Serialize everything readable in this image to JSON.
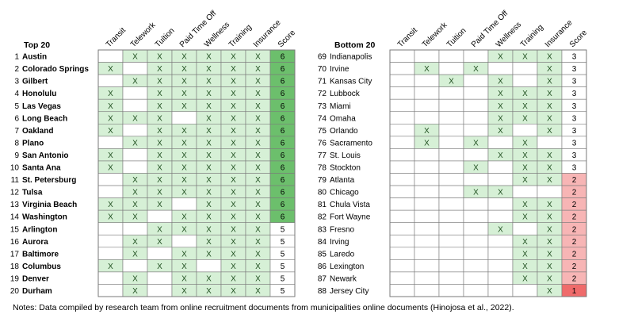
{
  "chart_data": {
    "type": "table",
    "columns": [
      "Transit",
      "Telework",
      "Tuition",
      "Paid Time Off",
      "Wellness",
      "Training",
      "Insurance",
      "Score"
    ],
    "mark": "X",
    "colors": {
      "check_fill": "#d6f0d6",
      "score_6": "#6cbf6c",
      "score_5": "#ffffff",
      "score_3": "#ffffff",
      "score_2": "#f7b5b5",
      "score_1": "#ef6b6b",
      "border": "#7a7a7a"
    },
    "tables": [
      {
        "title": "Top 20",
        "rows": [
          {
            "rank": "1",
            "city": "Austin",
            "flags": [
              0,
              1,
              1,
              1,
              1,
              1,
              1
            ],
            "score": "6"
          },
          {
            "rank": "2",
            "city": "Colorado Springs",
            "flags": [
              1,
              0,
              1,
              1,
              1,
              1,
              1
            ],
            "score": "6"
          },
          {
            "rank": "3",
            "city": "Gilbert",
            "flags": [
              0,
              1,
              1,
              1,
              1,
              1,
              1
            ],
            "score": "6"
          },
          {
            "rank": "4",
            "city": "Honolulu",
            "flags": [
              1,
              0,
              1,
              1,
              1,
              1,
              1
            ],
            "score": "6"
          },
          {
            "rank": "5",
            "city": "Las Vegas",
            "flags": [
              1,
              0,
              1,
              1,
              1,
              1,
              1
            ],
            "score": "6"
          },
          {
            "rank": "6",
            "city": "Long Beach",
            "flags": [
              1,
              1,
              1,
              0,
              1,
              1,
              1
            ],
            "score": "6"
          },
          {
            "rank": "7",
            "city": "Oakland",
            "flags": [
              1,
              0,
              1,
              1,
              1,
              1,
              1
            ],
            "score": "6"
          },
          {
            "rank": "8",
            "city": "Plano",
            "flags": [
              0,
              1,
              1,
              1,
              1,
              1,
              1
            ],
            "score": "6"
          },
          {
            "rank": "9",
            "city": "San Antonio",
            "flags": [
              1,
              0,
              1,
              1,
              1,
              1,
              1
            ],
            "score": "6"
          },
          {
            "rank": "10",
            "city": "Santa Ana",
            "flags": [
              1,
              0,
              1,
              1,
              1,
              1,
              1
            ],
            "score": "6"
          },
          {
            "rank": "11",
            "city": "St. Petersburg",
            "flags": [
              0,
              1,
              1,
              1,
              1,
              1,
              1
            ],
            "score": "6"
          },
          {
            "rank": "12",
            "city": "Tulsa",
            "flags": [
              0,
              1,
              1,
              1,
              1,
              1,
              1
            ],
            "score": "6"
          },
          {
            "rank": "13",
            "city": "Virginia Beach",
            "flags": [
              1,
              1,
              1,
              0,
              1,
              1,
              1
            ],
            "score": "6"
          },
          {
            "rank": "14",
            "city": "Washington",
            "flags": [
              1,
              1,
              0,
              1,
              1,
              1,
              1
            ],
            "score": "6"
          },
          {
            "rank": "15",
            "city": "Arlington",
            "flags": [
              0,
              0,
              1,
              1,
              1,
              1,
              1
            ],
            "score": "5"
          },
          {
            "rank": "16",
            "city": "Aurora",
            "flags": [
              0,
              1,
              1,
              0,
              1,
              1,
              1
            ],
            "score": "5"
          },
          {
            "rank": "17",
            "city": "Baltimore",
            "flags": [
              0,
              1,
              0,
              1,
              1,
              1,
              1
            ],
            "score": "5"
          },
          {
            "rank": "18",
            "city": "Columbus",
            "flags": [
              1,
              0,
              1,
              1,
              0,
              1,
              1
            ],
            "score": "5"
          },
          {
            "rank": "19",
            "city": "Denver",
            "flags": [
              0,
              1,
              0,
              1,
              1,
              1,
              1
            ],
            "score": "5"
          },
          {
            "rank": "20",
            "city": "Durham",
            "flags": [
              0,
              1,
              0,
              1,
              1,
              1,
              1
            ],
            "score": "5"
          }
        ]
      },
      {
        "title": "Bottom 20",
        "rows": [
          {
            "rank": "69",
            "city": "Indianapolis",
            "flags": [
              0,
              0,
              0,
              0,
              1,
              1,
              1
            ],
            "score": "3"
          },
          {
            "rank": "70",
            "city": "Irvine",
            "flags": [
              0,
              1,
              0,
              1,
              0,
              0,
              1
            ],
            "score": "3"
          },
          {
            "rank": "71",
            "city": "Kansas City",
            "flags": [
              0,
              0,
              1,
              0,
              1,
              0,
              1
            ],
            "score": "3"
          },
          {
            "rank": "72",
            "city": "Lubbock",
            "flags": [
              0,
              0,
              0,
              0,
              1,
              1,
              1
            ],
            "score": "3"
          },
          {
            "rank": "73",
            "city": "Miami",
            "flags": [
              0,
              0,
              0,
              0,
              1,
              1,
              1
            ],
            "score": "3"
          },
          {
            "rank": "74",
            "city": "Omaha",
            "flags": [
              0,
              0,
              0,
              0,
              1,
              1,
              1
            ],
            "score": "3"
          },
          {
            "rank": "75",
            "city": "Orlando",
            "flags": [
              0,
              1,
              0,
              0,
              1,
              0,
              1
            ],
            "score": "3"
          },
          {
            "rank": "76",
            "city": "Sacramento",
            "flags": [
              0,
              1,
              0,
              1,
              0,
              1,
              0
            ],
            "score": "3"
          },
          {
            "rank": "77",
            "city": "St. Louis",
            "flags": [
              0,
              0,
              0,
              0,
              1,
              1,
              1
            ],
            "score": "3"
          },
          {
            "rank": "78",
            "city": "Stockton",
            "flags": [
              0,
              0,
              0,
              1,
              0,
              1,
              1
            ],
            "score": "3"
          },
          {
            "rank": "79",
            "city": "Atlanta",
            "flags": [
              0,
              0,
              0,
              0,
              0,
              1,
              1
            ],
            "score": "2"
          },
          {
            "rank": "80",
            "city": "Chicago",
            "flags": [
              0,
              0,
              0,
              1,
              1,
              0,
              0
            ],
            "score": "2"
          },
          {
            "rank": "81",
            "city": "Chula Vista",
            "flags": [
              0,
              0,
              0,
              0,
              0,
              1,
              1
            ],
            "score": "2"
          },
          {
            "rank": "82",
            "city": "Fort Wayne",
            "flags": [
              0,
              0,
              0,
              0,
              0,
              1,
              1
            ],
            "score": "2"
          },
          {
            "rank": "83",
            "city": "Fresno",
            "flags": [
              0,
              0,
              0,
              0,
              1,
              0,
              1
            ],
            "score": "2"
          },
          {
            "rank": "84",
            "city": "Irving",
            "flags": [
              0,
              0,
              0,
              0,
              0,
              1,
              1
            ],
            "score": "2"
          },
          {
            "rank": "85",
            "city": "Laredo",
            "flags": [
              0,
              0,
              0,
              0,
              0,
              1,
              1
            ],
            "score": "2"
          },
          {
            "rank": "86",
            "city": "Lexington",
            "flags": [
              0,
              0,
              0,
              0,
              0,
              1,
              1
            ],
            "score": "2"
          },
          {
            "rank": "87",
            "city": "Newark",
            "flags": [
              0,
              0,
              0,
              0,
              0,
              1,
              1
            ],
            "score": "2"
          },
          {
            "rank": "88",
            "city": "Jersey City",
            "flags": [
              0,
              0,
              0,
              0,
              0,
              0,
              1
            ],
            "score": "1"
          }
        ]
      }
    ],
    "note": "Notes: Data compiled by research team from online recruitment documents from municipalities online documents (Hinojosa et al., 2022)."
  }
}
